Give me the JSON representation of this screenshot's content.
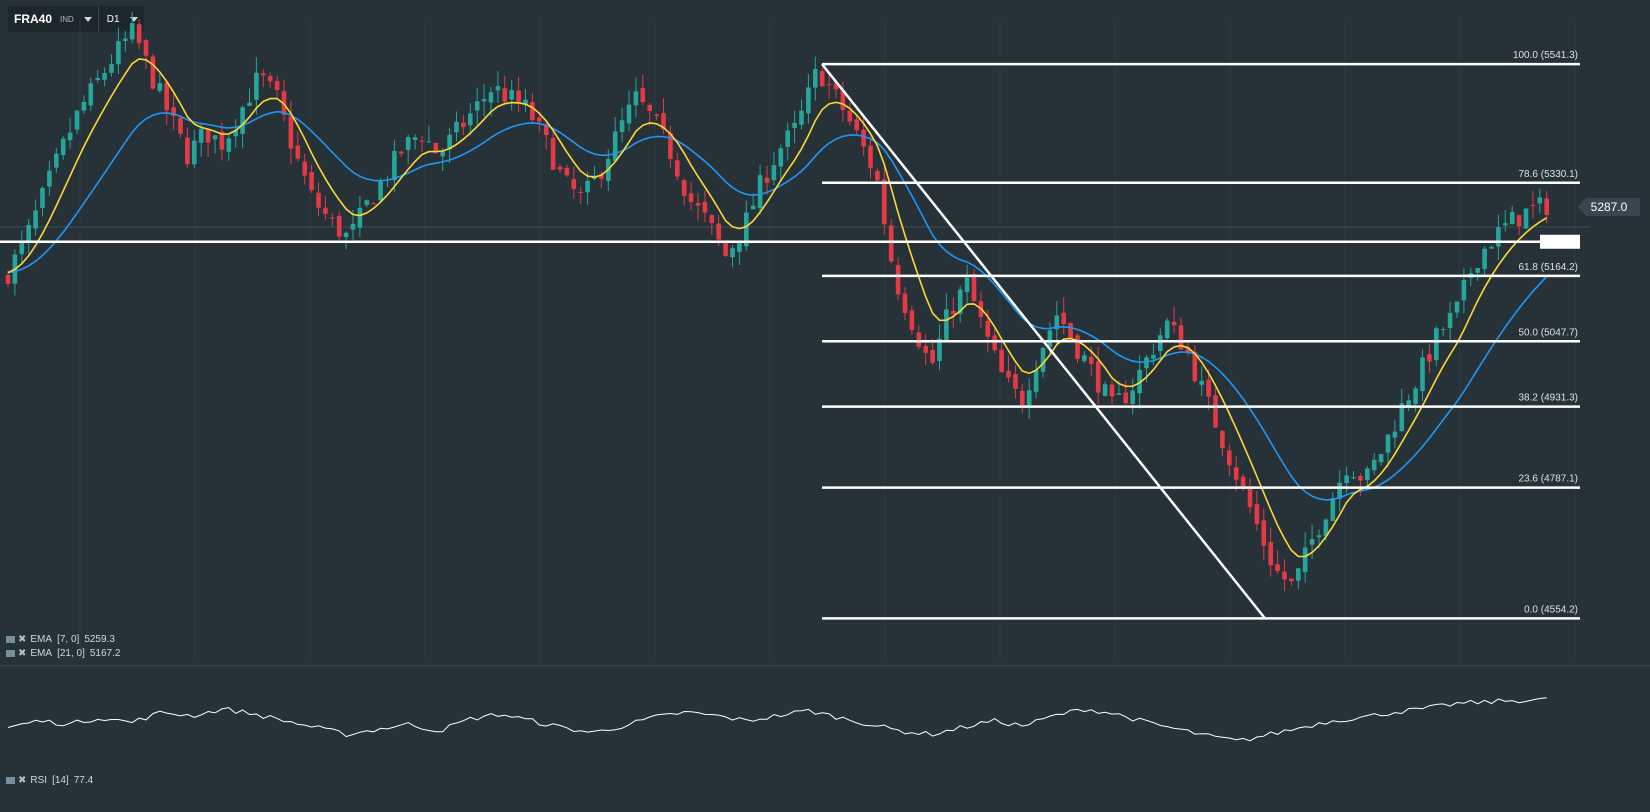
{
  "toolbar": {
    "symbol": "FRA40",
    "symbol_type": "IND",
    "timeframe": "D1"
  },
  "indicators": [
    {
      "label": "EMA",
      "params": "[7, 0]",
      "value": "5259.3"
    },
    {
      "label": "EMA",
      "params": "[21, 0]",
      "value": "5167.2"
    }
  ],
  "rsi": {
    "label": "RSI",
    "params": "[14]",
    "value": "77.4"
  },
  "colors": {
    "background": "#263238",
    "up_candle": "#26a69a",
    "down_candle": "#e53946",
    "ema7": "#fdd835",
    "ema21": "#2196f3",
    "fib": "#ffffff",
    "rsi": "#ffffff"
  },
  "chart_data": {
    "type": "candlestick",
    "ylim": [
      4480,
      5620
    ],
    "current_price": "5287.0",
    "current_price_value": 5287.0,
    "horizontal_line": 5225,
    "close_path": [
      5170,
      5230,
      5310,
      5390,
      5460,
      5510,
      5560,
      5600,
      5520,
      5450,
      5380,
      5420,
      5400,
      5460,
      5520,
      5480,
      5380,
      5300,
      5260,
      5230,
      5290,
      5340,
      5390,
      5420,
      5380,
      5420,
      5460,
      5500,
      5480,
      5460,
      5400,
      5330,
      5300,
      5350,
      5420,
      5480,
      5440,
      5380,
      5300,
      5260,
      5200,
      5250,
      5330,
      5390,
      5430,
      5520
    ],
    "end_path": [
      5520,
      5470,
      5410,
      5340,
      5160,
      5080,
      5000,
      5100,
      5150,
      5060,
      4980,
      4940,
      5030,
      5100,
      5040,
      4990,
      4930,
      4960,
      5020,
      5080,
      5040,
      4960,
      4880,
      4800,
      4720,
      4640,
      4610,
      4690,
      4760,
      4830,
      4800,
      4860,
      4930,
      4990,
      5060,
      5100,
      5190,
      5230,
      5260,
      5280,
      5290
    ],
    "fib_levels": [
      {
        "label": "100.0 (5541.3)",
        "value": 5541.3
      },
      {
        "label": "78.6 (5330.1)",
        "value": 5330.1
      },
      {
        "label": "61.8 (5164.2)",
        "value": 5164.2
      },
      {
        "label": "50.0 (5047.7)",
        "value": 5047.7
      },
      {
        "label": "38.2 (4931.3)",
        "value": 4931.3
      },
      {
        "label": "23.6 (4787.1)",
        "value": 4787.1
      },
      {
        "label": "0.0 (4554.2)",
        "value": 4554.2
      }
    ],
    "trendline": [
      {
        "value": 5541.3
      },
      {
        "value": 4554.2
      }
    ],
    "rsi_path": [
      44,
      52,
      48,
      56,
      50,
      62,
      58,
      66,
      60,
      52,
      44,
      36,
      42,
      48,
      40,
      54,
      60,
      52,
      44,
      38,
      46,
      56,
      62,
      58,
      52,
      58,
      64,
      56,
      48,
      40,
      36,
      44,
      52,
      46,
      58,
      66,
      60,
      50,
      42,
      34,
      28,
      36,
      44,
      52,
      56,
      62,
      66,
      72,
      74,
      76,
      77
    ]
  }
}
